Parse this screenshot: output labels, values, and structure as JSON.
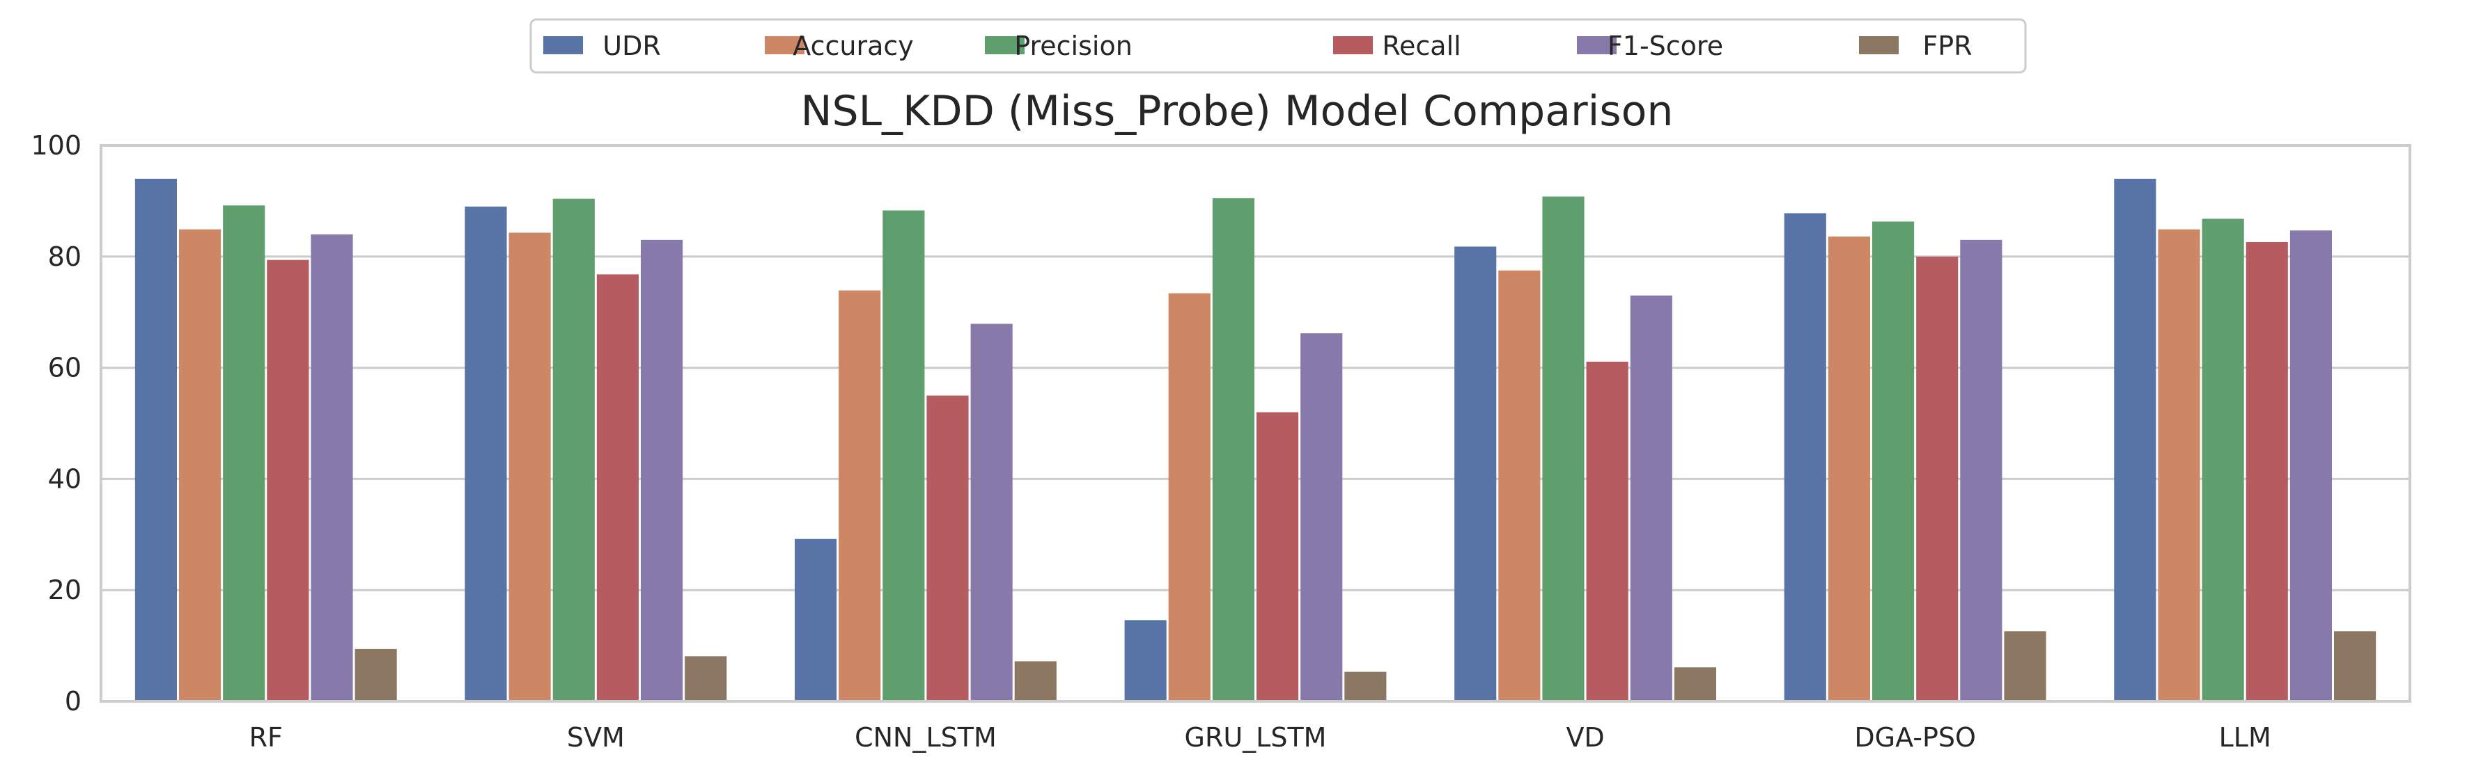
{
  "chart_data": {
    "type": "bar",
    "title": "NSL_KDD (Miss_Probe) Model Comparison",
    "xlabel": "",
    "ylabel": "",
    "categories": [
      "RF",
      "SVM",
      "CNN_LSTM",
      "GRU_LSTM",
      "VD",
      "DGA-PSO",
      "LLM"
    ],
    "series": [
      {
        "name": "UDR",
        "color": "#5874a6",
        "values": [
          94.0,
          89.0,
          29.2,
          14.6,
          81.8,
          87.8,
          94.0
        ]
      },
      {
        "name": "Accuracy",
        "color": "#cd8764",
        "values": [
          84.9,
          84.3,
          73.9,
          73.4,
          77.5,
          83.6,
          84.9
        ]
      },
      {
        "name": "Precision",
        "color": "#5f9e6d",
        "values": [
          89.2,
          90.4,
          88.3,
          90.5,
          90.8,
          86.3,
          86.8
        ]
      },
      {
        "name": "Recall",
        "color": "#b65b60",
        "values": [
          79.4,
          76.8,
          55.0,
          52.0,
          61.1,
          80.0,
          82.6
        ]
      },
      {
        "name": "F1-Score",
        "color": "#8779aa",
        "values": [
          84.0,
          83.0,
          67.9,
          66.2,
          73.0,
          83.0,
          84.7
        ]
      },
      {
        "name": "FPR",
        "color": "#8c7763",
        "values": [
          9.4,
          8.1,
          7.2,
          5.3,
          6.1,
          12.6,
          12.6
        ]
      }
    ],
    "ylim": [
      0,
      100
    ],
    "yticks": [
      0,
      20,
      40,
      60,
      80,
      100
    ],
    "grid": true,
    "legend_position": "top-center"
  }
}
